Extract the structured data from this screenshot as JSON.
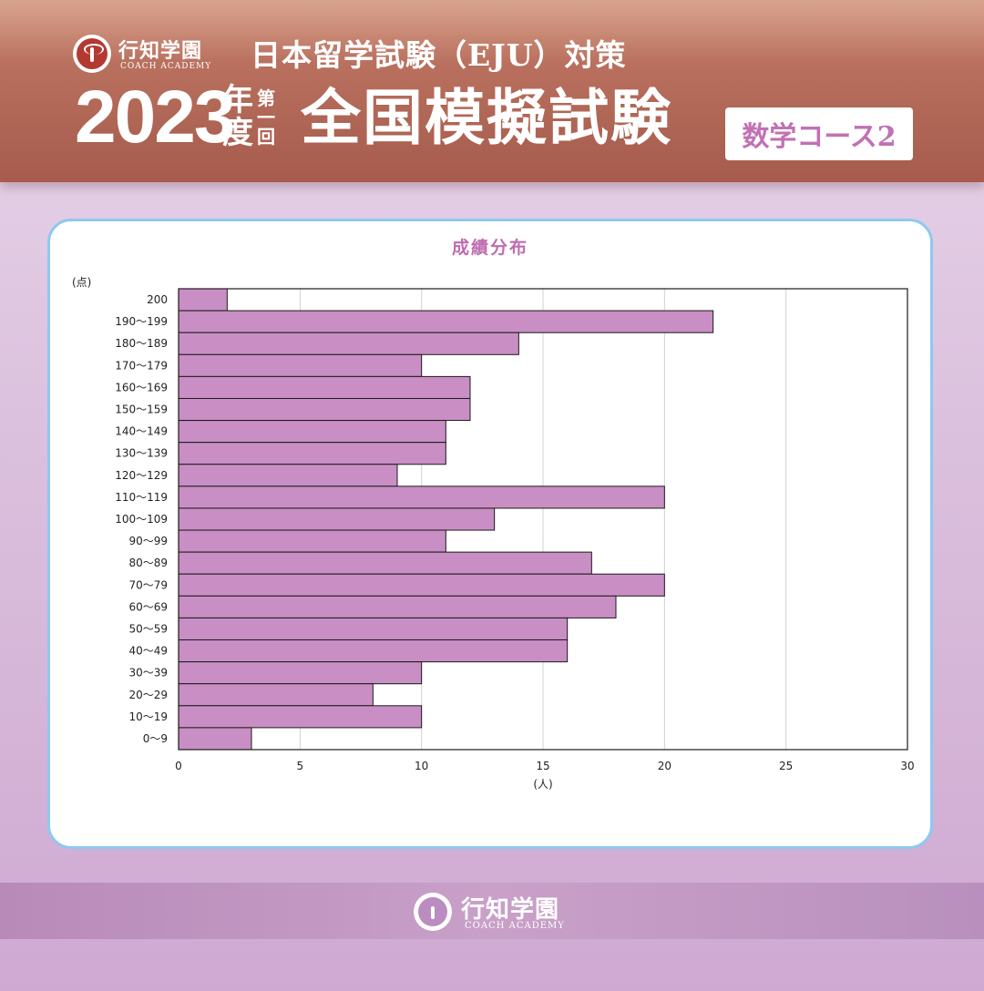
{
  "brand": {
    "name": "行知学園",
    "sub": "COACH ACADEMY"
  },
  "header": {
    "subtitle": "日本留学試験（EJU）対策",
    "year": "2023",
    "nendo": "年度",
    "round": "第一回",
    "title": "全国模擬試験",
    "course": "数学コース2"
  },
  "chart_data": {
    "type": "bar",
    "orientation": "horizontal",
    "title": "成績分布",
    "ylabel": "(点)",
    "xlabel": "(人)",
    "xlim": [
      0,
      30
    ],
    "xticks": [
      0,
      5,
      10,
      15,
      20,
      25,
      30
    ],
    "grid": true,
    "bar_color": "#c98fc4",
    "categories": [
      "200",
      "190～199",
      "180～189",
      "170～179",
      "160～169",
      "150～159",
      "140～149",
      "130～139",
      "120～129",
      "110～119",
      "100～109",
      "90～99",
      "80～89",
      "70～79",
      "60～69",
      "50～59",
      "40～49",
      "30～39",
      "20～29",
      "10～19",
      "0～9"
    ],
    "values": [
      2,
      22,
      14,
      10,
      12,
      12,
      11,
      11,
      9,
      20,
      13,
      11,
      17,
      20,
      18,
      16,
      16,
      10,
      8,
      10,
      3
    ]
  }
}
